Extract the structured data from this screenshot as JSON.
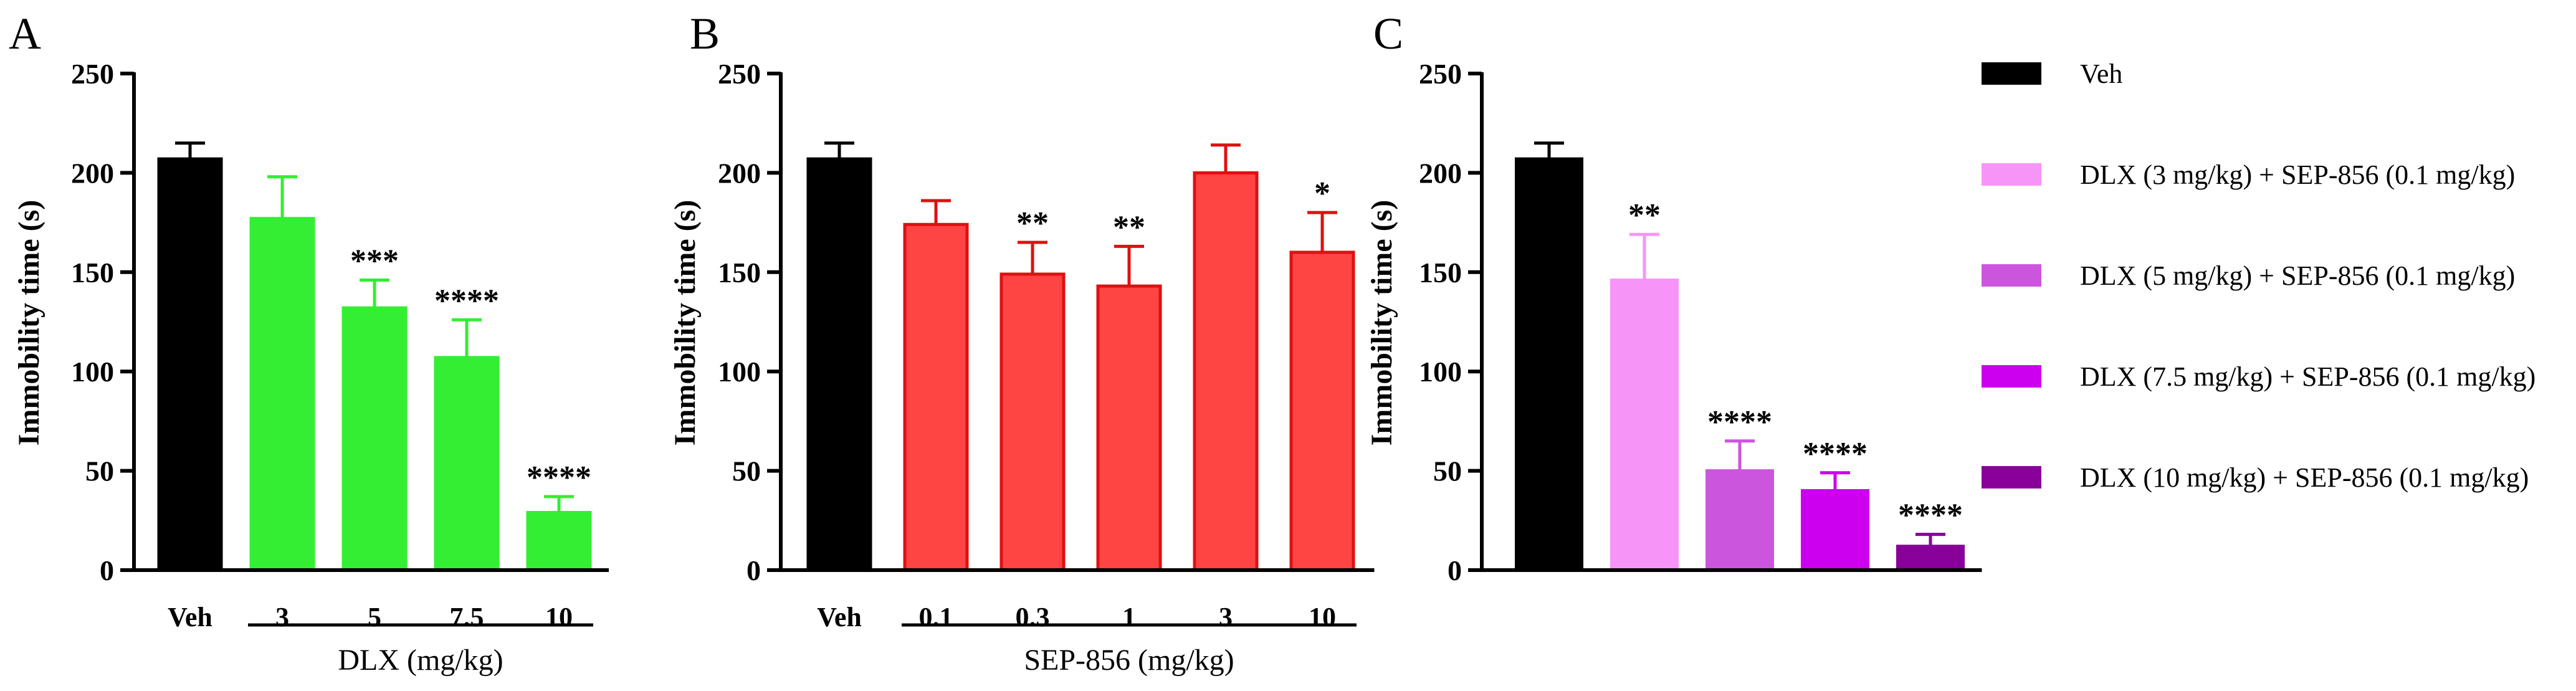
{
  "chart_data": [
    {
      "type": "bar",
      "panel_label": "A",
      "ylabel": "Immobility time (s)",
      "ylim": [
        0,
        250
      ],
      "yticks": [
        0,
        50,
        100,
        150,
        200,
        250
      ],
      "categories": [
        "Veh",
        "3",
        "5",
        "7.5",
        "10"
      ],
      "group_label": "DLX (mg/kg)",
      "group_range": [
        1,
        4
      ],
      "values": [
        207,
        177,
        132,
        107,
        29
      ],
      "errors": [
        8,
        21,
        14,
        19,
        8
      ],
      "significance": [
        "",
        "",
        "***",
        "****",
        "****"
      ],
      "colors": [
        "#000000",
        "#33ee33",
        "#33ee33",
        "#33ee33",
        "#33ee33"
      ],
      "edge_colors": [
        "#000000",
        "#33ee33",
        "#33ee33",
        "#33ee33",
        "#33ee33"
      ],
      "error_colors": [
        "#000000",
        "#33ee33",
        "#33ee33",
        "#33ee33",
        "#33ee33"
      ]
    },
    {
      "type": "bar",
      "panel_label": "B",
      "ylabel": "Immobility time (s)",
      "ylim": [
        0,
        250
      ],
      "yticks": [
        0,
        50,
        100,
        150,
        200,
        250
      ],
      "categories": [
        "Veh",
        "0.1",
        "0.3",
        "1",
        "3",
        "10"
      ],
      "group_label": "SEP-856 (mg/kg)",
      "group_range": [
        1,
        5
      ],
      "values": [
        207,
        174,
        149,
        143,
        200,
        160
      ],
      "errors": [
        8,
        12,
        16,
        20,
        14,
        20
      ],
      "significance": [
        "",
        "",
        "**",
        "**",
        "",
        "*"
      ],
      "colors": [
        "#000000",
        "#ff4444",
        "#ff4444",
        "#ff4444",
        "#ff4444",
        "#ff4444"
      ],
      "edge_colors": [
        "#000000",
        "#dd1111",
        "#dd1111",
        "#dd1111",
        "#dd1111",
        "#dd1111"
      ],
      "error_colors": [
        "#000000",
        "#dd1111",
        "#dd1111",
        "#dd1111",
        "#dd1111",
        "#dd1111"
      ]
    },
    {
      "type": "bar",
      "panel_label": "C",
      "ylabel": "Immobility time (s)",
      "ylim": [
        0,
        250
      ],
      "yticks": [
        0,
        50,
        100,
        150,
        200,
        250
      ],
      "categories": [
        "Veh",
        "DLX (3 mg/kg) + SEP-856 (0.1 mg/kg)",
        "DLX (5 mg/kg) + SEP-856 (0.1 mg/kg)",
        "DLX (7.5 mg/kg) + SEP-856 (0.1 mg/kg)",
        "DLX (10 mg/kg) + SEP-856 (0.1 mg/kg)"
      ],
      "values": [
        207,
        146,
        50,
        40,
        12
      ],
      "errors": [
        8,
        23,
        15,
        9,
        6
      ],
      "significance": [
        "",
        "**",
        "****",
        "****",
        "****"
      ],
      "colors": [
        "#000000",
        "#f794f7",
        "#cc55dd",
        "#cc00ee",
        "#880099"
      ],
      "edge_colors": [
        "#000000",
        "#f794f7",
        "#cc55dd",
        "#cc00ee",
        "#880099"
      ],
      "error_colors": [
        "#000000",
        "#f794f7",
        "#cc55dd",
        "#cc00ee",
        "#880099"
      ],
      "legend": {
        "position": "right",
        "entries": [
          {
            "label": "Veh",
            "color": "#000000"
          },
          {
            "label": "DLX (3 mg/kg) + SEP-856 (0.1 mg/kg)",
            "color": "#f794f7"
          },
          {
            "label": "DLX (5 mg/kg) + SEP-856 (0.1 mg/kg)",
            "color": "#cc55dd"
          },
          {
            "label": "DLX (7.5 mg/kg) + SEP-856 (0.1 mg/kg)",
            "color": "#cc00ee"
          },
          {
            "label": "DLX (10 mg/kg) + SEP-856 (0.1 mg/kg)",
            "color": "#880099"
          }
        ]
      }
    }
  ]
}
